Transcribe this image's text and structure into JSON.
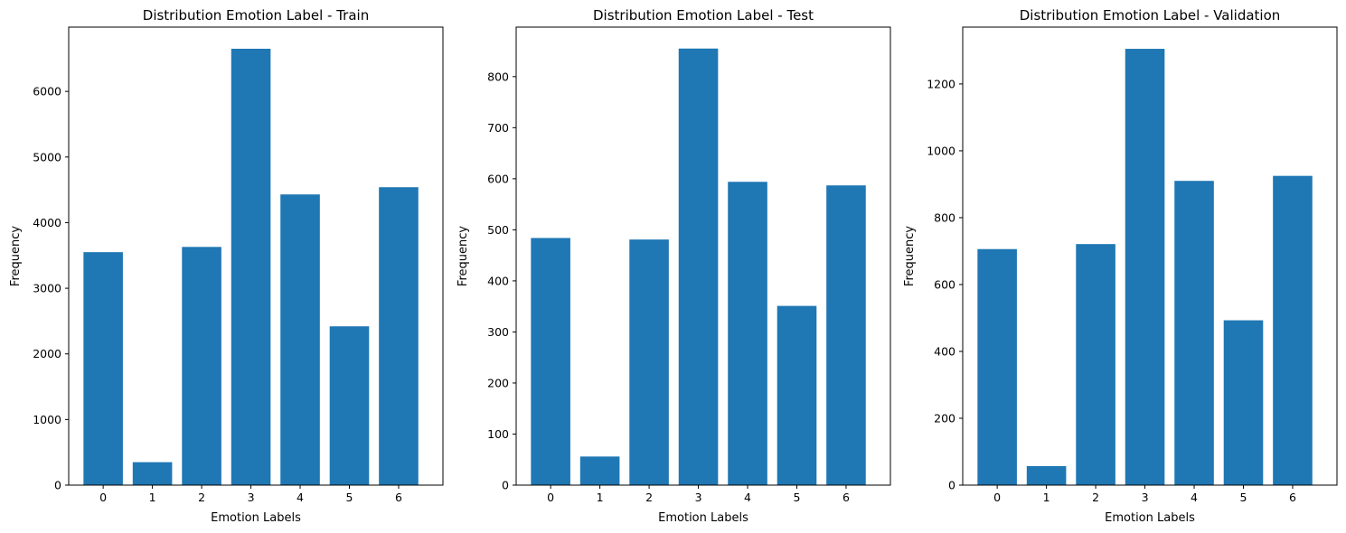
{
  "chart_data": [
    {
      "type": "bar",
      "title": "Distribution Emotion Label - Train",
      "xlabel": "Emotion Labels",
      "ylabel": "Frequency",
      "categories": [
        "0",
        "1",
        "2",
        "3",
        "4",
        "5",
        "6"
      ],
      "values": [
        3550,
        350,
        3630,
        6650,
        4430,
        2420,
        4540
      ],
      "ylim": [
        0,
        6980
      ],
      "yticks": [
        0,
        1000,
        2000,
        3000,
        4000,
        5000,
        6000
      ],
      "color": "#1f77b4",
      "grid": false
    },
    {
      "type": "bar",
      "title": "Distribution Emotion Label - Test",
      "xlabel": "Emotion Labels",
      "ylabel": "Frequency",
      "categories": [
        "0",
        "1",
        "2",
        "3",
        "4",
        "5",
        "6"
      ],
      "values": [
        484,
        56,
        481,
        855,
        594,
        351,
        587
      ],
      "ylim": [
        0,
        897
      ],
      "yticks": [
        0,
        100,
        200,
        300,
        400,
        500,
        600,
        700,
        800
      ],
      "color": "#1f77b4",
      "grid": false
    },
    {
      "type": "bar",
      "title": "Distribution Emotion Label - Validation",
      "xlabel": "Emotion Labels",
      "ylabel": "Frequency",
      "categories": [
        "0",
        "1",
        "2",
        "3",
        "4",
        "5",
        "6"
      ],
      "values": [
        706,
        57,
        721,
        1305,
        910,
        493,
        925
      ],
      "ylim": [
        0,
        1370
      ],
      "yticks": [
        0,
        200,
        400,
        600,
        800,
        1000,
        1200
      ],
      "color": "#1f77b4",
      "grid": false
    }
  ]
}
